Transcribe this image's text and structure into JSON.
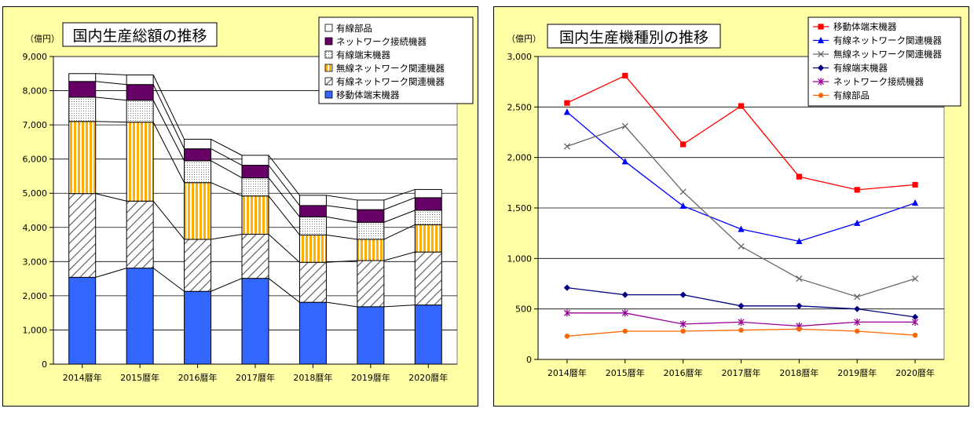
{
  "chart_data": [
    {
      "type": "bar",
      "stacked": true,
      "title": "国内生産総額の推移",
      "ylabel": "（億円）",
      "ylim": [
        0,
        9000
      ],
      "yticks": [
        "0",
        "1,000",
        "2,000",
        "3,000",
        "4,000",
        "5,000",
        "6,000",
        "7,000",
        "8,000",
        "9,000"
      ],
      "grid": true,
      "legend_position": "top-right",
      "categories": [
        "2014暦年",
        "2015暦年",
        "2016暦年",
        "2017暦年",
        "2018暦年",
        "2019暦年",
        "2020暦年"
      ],
      "series": [
        {
          "name": "移動体端末機器",
          "values": [
            2540,
            2810,
            2130,
            2510,
            1810,
            1680,
            1730
          ],
          "color": "#3366ff",
          "pattern": "solid"
        },
        {
          "name": "有線ネットワーク関連機器",
          "values": [
            2450,
            1960,
            1520,
            1290,
            1170,
            1350,
            1550
          ],
          "color": "#ffffff",
          "pattern": "diagonal"
        },
        {
          "name": "無線ネットワーク関連機器",
          "values": [
            2110,
            2310,
            1660,
            1120,
            800,
            620,
            800
          ],
          "color": "#ffc000",
          "pattern": "vertical"
        },
        {
          "name": "有線端末機器",
          "values": [
            710,
            640,
            640,
            530,
            530,
            500,
            420
          ],
          "color": "#ffffff",
          "pattern": "dots"
        },
        {
          "name": "ネットワーク接続機器",
          "values": [
            460,
            460,
            350,
            370,
            330,
            370,
            370
          ],
          "color": "#660066",
          "pattern": "solid"
        },
        {
          "name": "有線部品",
          "values": [
            230,
            280,
            280,
            290,
            300,
            280,
            240
          ],
          "color": "#ffffff",
          "pattern": "solid"
        }
      ]
    },
    {
      "type": "line",
      "title": "国内生産機種別の推移",
      "ylabel": "（億円）",
      "ylim": [
        0,
        3000
      ],
      "yticks": [
        "0",
        "500",
        "1,000",
        "1,500",
        "2,000",
        "2,500",
        "3,000"
      ],
      "grid": true,
      "legend_position": "top-right",
      "categories": [
        "2014暦年",
        "2015暦年",
        "2016暦年",
        "2017暦年",
        "2018暦年",
        "2019暦年",
        "2020暦年"
      ],
      "series": [
        {
          "name": "移動体端末機器",
          "values": [
            2540,
            2810,
            2130,
            2510,
            1810,
            1680,
            1730
          ],
          "color": "#ff0000",
          "marker": "square"
        },
        {
          "name": "有線ネットワーク関連機器",
          "values": [
            2450,
            1960,
            1520,
            1290,
            1170,
            1350,
            1550
          ],
          "color": "#0000ff",
          "marker": "triangle"
        },
        {
          "name": "無線ネットワーク関連機器",
          "values": [
            2110,
            2310,
            1660,
            1120,
            800,
            620,
            800
          ],
          "color": "#666666",
          "marker": "x"
        },
        {
          "name": "有線端末機器",
          "values": [
            710,
            640,
            640,
            530,
            530,
            500,
            420
          ],
          "color": "#000080",
          "marker": "diamond"
        },
        {
          "name": "ネットワーク接続機器",
          "values": [
            460,
            460,
            350,
            370,
            330,
            370,
            370
          ],
          "color": "#990099",
          "marker": "star"
        },
        {
          "name": "有線部品",
          "values": [
            230,
            280,
            280,
            290,
            300,
            280,
            240
          ],
          "color": "#ff6600",
          "marker": "circle"
        }
      ]
    }
  ]
}
